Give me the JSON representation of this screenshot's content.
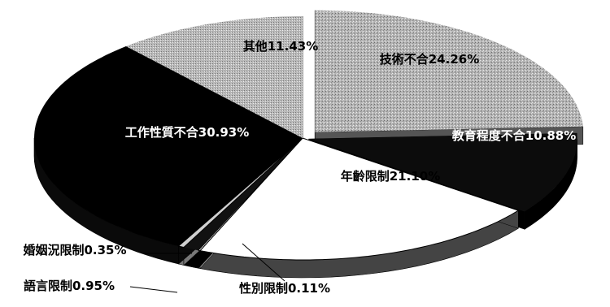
{
  "chart_data": {
    "type": "pie",
    "style": "3d-exploded",
    "slices": [
      {
        "label": "技術不合",
        "value": 24.26,
        "text": "技術不合24.26%",
        "color": "#a7a7a7"
      },
      {
        "label": "教育程度不合",
        "value": 10.88,
        "text": "教育程度不合10.88%",
        "color": "#0d0d0d"
      },
      {
        "label": "年齡限制",
        "value": 21.1,
        "text": "年齡限制21.10%",
        "color": "#ffffff"
      },
      {
        "label": "性別限制",
        "value": 0.11,
        "text": "性別限制0.11%",
        "color": "#ffffff"
      },
      {
        "label": "語言限制",
        "value": 0.95,
        "text": "語言限制0.95%",
        "color": "#1a1a1a"
      },
      {
        "label": "婚姻況限制",
        "value": 0.35,
        "text": "婚姻況限制0.35%",
        "color": "#d0d0d0"
      },
      {
        "label": "工作性質不合",
        "value": 30.93,
        "text": "工作性質不合30.93%",
        "color": "#000000"
      },
      {
        "label": "其他",
        "value": 11.43,
        "text": "其他11.43%",
        "color": "#c4c4c4"
      }
    ]
  }
}
